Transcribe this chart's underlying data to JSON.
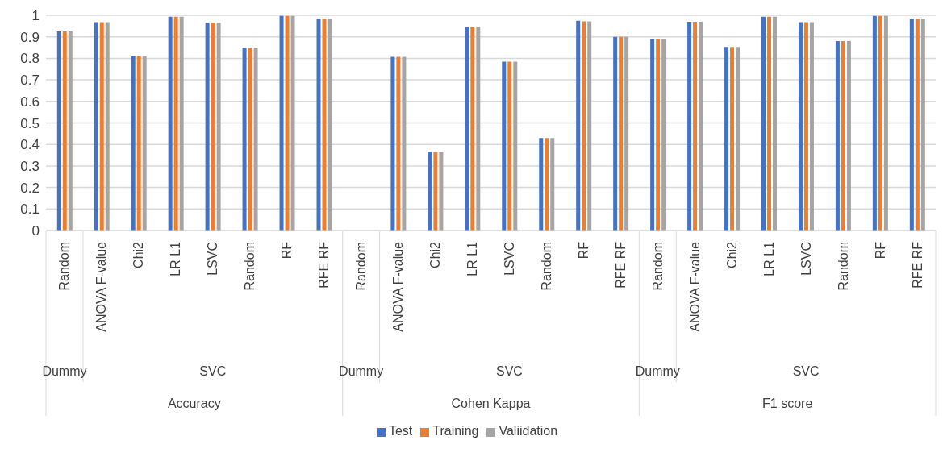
{
  "chart_data": {
    "type": "bar",
    "categories": [
      "Random",
      "ANOVA F-value",
      "Chi2",
      "LR L1",
      "LSVC",
      "Random",
      "RF",
      "RFE RF",
      "Random",
      "ANOVA F-value",
      "Chi2",
      "LR L1",
      "LSVC",
      "Random",
      "RF",
      "RFE RF",
      "Random",
      "ANOVA F-value",
      "Chi2",
      "LR L1",
      "LSVC",
      "Random",
      "RF",
      "RFE RF"
    ],
    "series": [
      {
        "name": "Test",
        "color": "#4472c4",
        "values": [
          0.925,
          0.968,
          0.81,
          0.993,
          0.965,
          0.85,
          0.997,
          0.983,
          0,
          0.807,
          0.365,
          0.948,
          0.785,
          0.43,
          0.975,
          0.9,
          0.89,
          0.97,
          0.853,
          0.993,
          0.968,
          0.88,
          0.997,
          0.985
        ]
      },
      {
        "name": "Training",
        "color": "#ed7d31",
        "values": [
          0.925,
          0.968,
          0.81,
          0.993,
          0.965,
          0.85,
          0.997,
          0.983,
          0,
          0.807,
          0.365,
          0.948,
          0.785,
          0.43,
          0.972,
          0.9,
          0.89,
          0.97,
          0.853,
          0.993,
          0.968,
          0.88,
          0.997,
          0.985
        ]
      },
      {
        "name": "Valiidation",
        "color": "#a5a5a5",
        "values": [
          0.925,
          0.968,
          0.81,
          0.993,
          0.965,
          0.85,
          0.997,
          0.983,
          0,
          0.807,
          0.365,
          0.948,
          0.785,
          0.43,
          0.972,
          0.9,
          0.89,
          0.97,
          0.853,
          0.993,
          0.968,
          0.88,
          0.997,
          0.985
        ]
      }
    ],
    "annotations": [
      "Dummy",
      "SVC",
      "Accuracy",
      "Dummy",
      "SVC",
      "Cohen Kappa",
      "Dummy",
      "SVC",
      "F1 score"
    ],
    "ylim": [
      0,
      1
    ],
    "yticks": [
      0,
      0.1,
      0.2,
      0.3,
      0.4,
      0.5,
      0.6,
      0.7,
      0.8,
      0.9,
      1
    ],
    "grid": "y",
    "legend": "bottom"
  }
}
